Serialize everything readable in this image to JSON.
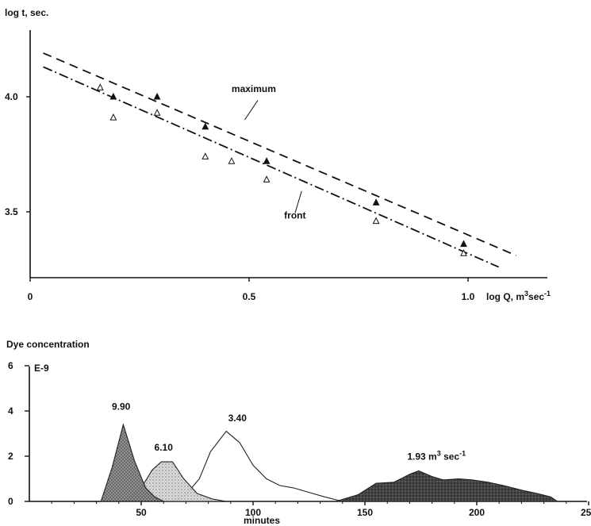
{
  "chart_data": [
    {
      "type": "scatter",
      "title": "",
      "ylabel": "log t, sec.",
      "xlabel": "log Q, m3sec-1",
      "xlabel_parts": {
        "main": "log Q, m",
        "sup1": "3",
        "mid": "sec",
        "sup2": "-1"
      },
      "xlim": [
        0,
        1.1
      ],
      "ylim": [
        3.3,
        4.3
      ],
      "x_ticks": [
        {
          "value": 0,
          "label": "0"
        },
        {
          "value": 0.5,
          "label": "0.5"
        },
        {
          "value": 1.0,
          "label": "1.0"
        }
      ],
      "y_ticks": [
        {
          "value": 3.5,
          "label": "3.5"
        },
        {
          "value": 4.0,
          "label": "4.0"
        }
      ],
      "series": [
        {
          "name": "maximum",
          "marker": "filled-triangle",
          "line_style": "dashed",
          "points": [
            [
              0.19,
              4.0
            ],
            [
              0.29,
              4.0
            ],
            [
              0.4,
              3.87
            ],
            [
              0.54,
              3.72
            ],
            [
              0.79,
              3.54
            ],
            [
              0.99,
              3.36
            ]
          ],
          "fit_line": [
            [
              0.03,
              4.19
            ],
            [
              1.11,
              3.31
            ]
          ]
        },
        {
          "name": "front",
          "marker": "open-triangle",
          "line_style": "dash-dot",
          "points": [
            [
              0.16,
              4.04
            ],
            [
              0.19,
              3.91
            ],
            [
              0.29,
              3.93
            ],
            [
              0.4,
              3.74
            ],
            [
              0.46,
              3.72
            ],
            [
              0.54,
              3.64
            ],
            [
              0.79,
              3.46
            ],
            [
              0.99,
              3.32
            ]
          ],
          "fit_line": [
            [
              0.03,
              4.13
            ],
            [
              1.07,
              3.26
            ]
          ]
        }
      ],
      "annotations": [
        {
          "text": "maximum",
          "x": 0.46,
          "y": 4.02
        },
        {
          "text": "front",
          "x": 0.58,
          "y": 3.47
        }
      ]
    },
    {
      "type": "area",
      "title": "Dye concentration",
      "ylabel": "Dye concentration",
      "y_unit_label": "E-9",
      "xlabel": "minutes",
      "xlim": [
        0,
        250
      ],
      "ylim": [
        0,
        6
      ],
      "x_ticks": [
        {
          "value": 50,
          "label": "50"
        },
        {
          "value": 100,
          "label": "100"
        },
        {
          "value": 150,
          "label": "150"
        },
        {
          "value": 200,
          "label": "200"
        },
        {
          "value": 250,
          "label": "250"
        }
      ],
      "y_ticks": [
        {
          "value": 0,
          "label": "0"
        },
        {
          "value": 2,
          "label": "2"
        },
        {
          "value": 4,
          "label": "4"
        },
        {
          "value": 6,
          "label": "6"
        }
      ],
      "series": [
        {
          "name": "9.90",
          "label": "9.90",
          "fill": "dark-stipple",
          "points": [
            [
              32,
              0
            ],
            [
              37,
              1.5
            ],
            [
              42,
              3.4
            ],
            [
              47,
              1.8
            ],
            [
              52,
              0.6
            ],
            [
              56,
              0.2
            ],
            [
              60,
              0
            ]
          ]
        },
        {
          "name": "6.10",
          "label": "6.10",
          "fill": "light-stipple",
          "points": [
            [
              43,
              0
            ],
            [
              50,
              0.6
            ],
            [
              55,
              1.4
            ],
            [
              59,
              1.75
            ],
            [
              64,
              1.75
            ],
            [
              69,
              1.0
            ],
            [
              75,
              0.35
            ],
            [
              82,
              0.1
            ],
            [
              88,
              0
            ]
          ]
        },
        {
          "name": "3.40",
          "label": "3.40",
          "fill": "none",
          "points": [
            [
              64,
              0
            ],
            [
              70,
              0.3
            ],
            [
              76,
              1.0
            ],
            [
              81,
              2.2
            ],
            [
              88,
              3.1
            ],
            [
              94,
              2.6
            ],
            [
              100,
              1.6
            ],
            [
              106,
              1.0
            ],
            [
              112,
              0.7
            ],
            [
              118,
              0.6
            ],
            [
              125,
              0.4
            ],
            [
              132,
              0.2
            ],
            [
              140,
              0
            ]
          ]
        },
        {
          "name": "1.93",
          "label_parts": {
            "main": "1.93 m",
            "sup1": "3",
            "mid": " sec",
            "sup2": "-1"
          },
          "fill": "black-stipple",
          "points": [
            [
              137,
              0
            ],
            [
              147,
              0.3
            ],
            [
              155,
              0.8
            ],
            [
              163,
              0.85
            ],
            [
              170,
              1.2
            ],
            [
              174,
              1.35
            ],
            [
              180,
              1.1
            ],
            [
              185,
              0.95
            ],
            [
              192,
              1.0
            ],
            [
              198,
              0.95
            ],
            [
              205,
              0.85
            ],
            [
              212,
              0.7
            ],
            [
              220,
              0.5
            ],
            [
              227,
              0.35
            ],
            [
              233,
              0.2
            ],
            [
              236,
              0
            ]
          ]
        }
      ]
    }
  ]
}
